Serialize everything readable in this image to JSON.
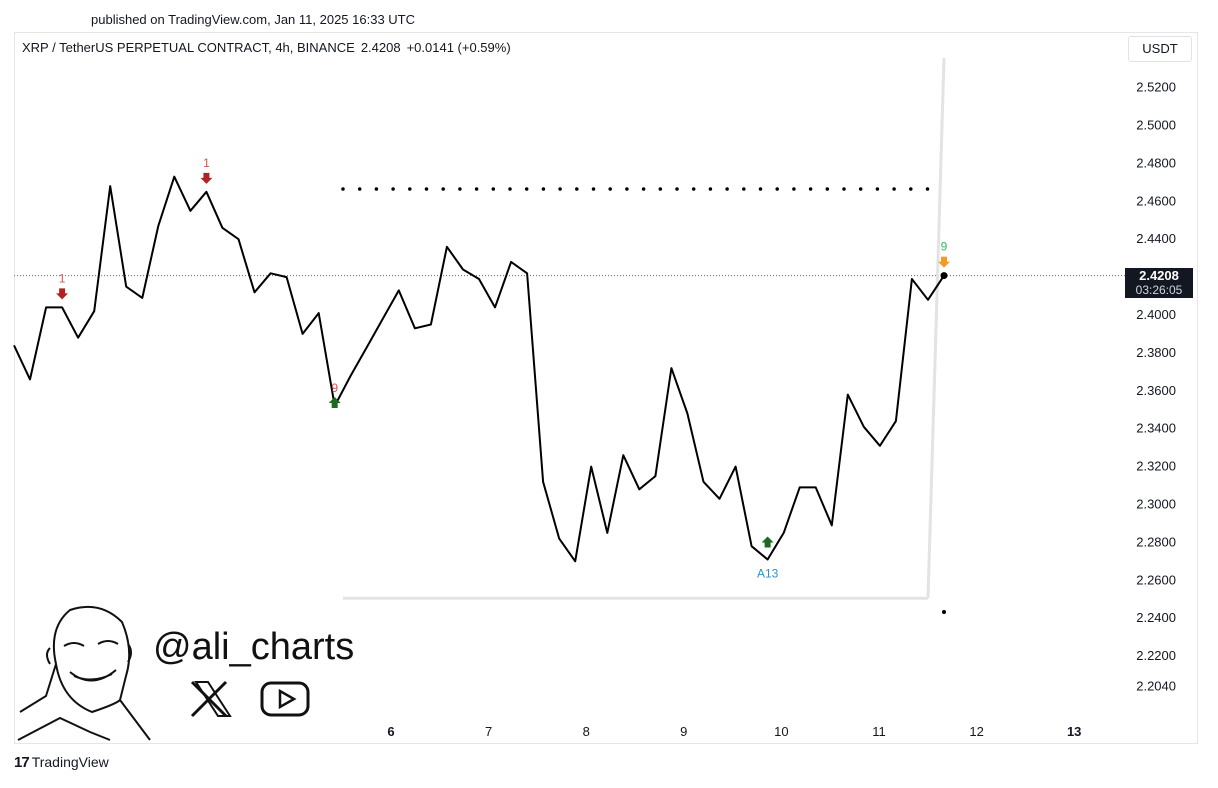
{
  "header": {
    "published": "published on TradingView.com, Jan 11, 2025 16:33 UTC",
    "symbol": "XRP / TetherUS PERPETUAL CONTRACT, 4h, BINANCE",
    "last_price": "2.4208",
    "change": "+0.0141 (+0.59%)",
    "currency_button": "USDT"
  },
  "price_tag": {
    "price": "2.4208",
    "countdown": "03:26:05"
  },
  "watermark": {
    "handle": "@ali_charts",
    "x_icon": "x-logo-icon",
    "youtube_icon": "youtube-icon"
  },
  "footer": {
    "brand": "TradingView",
    "brand_mark": "17"
  },
  "colors": {
    "line": "#000000",
    "sell_arrow": "#b22222",
    "buy_arrow": "#1e6b1e",
    "orange": "#f59a23",
    "green_label": "#2ebd5f",
    "blue_label": "#2f8fd1",
    "grey_guide": "#e3e3e3"
  },
  "chart_data": {
    "type": "line",
    "title": "XRP / TetherUS PERPETUAL CONTRACT, 4h, BINANCE",
    "y_ticks": [
      "2.5200",
      "2.5000",
      "2.4800",
      "2.4600",
      "2.4400",
      "2.4200",
      "2.4000",
      "2.3800",
      "2.3600",
      "2.3400",
      "2.3200",
      "2.3000",
      "2.2800",
      "2.2600",
      "2.2400",
      "2.2200",
      "2.2040"
    ],
    "x_ticks": [
      "6",
      "7",
      "8",
      "9",
      "10",
      "11",
      "12",
      "13"
    ],
    "ylim": [
      2.2,
      2.53
    ],
    "series": [
      {
        "values": [
          2.384,
          2.366,
          2.404,
          2.404,
          2.388,
          2.402,
          2.468,
          2.415,
          2.409,
          2.447,
          2.473,
          2.455,
          2.465,
          2.446,
          2.44,
          2.412,
          2.422,
          2.42,
          2.39,
          2.401,
          2.352,
          2.368,
          2.383,
          2.398,
          2.413,
          2.393,
          2.395,
          2.436,
          2.424,
          2.419,
          2.404,
          2.428,
          2.422,
          2.312,
          2.282,
          2.27,
          2.32,
          2.285,
          2.326,
          2.308,
          2.315,
          2.372,
          2.348,
          2.312,
          2.303,
          2.32,
          2.278,
          2.271,
          2.285,
          2.309,
          2.309,
          2.289,
          2.358,
          2.341,
          2.331,
          2.344,
          2.419,
          2.408,
          2.4208
        ]
      }
    ],
    "resistance_dotted": 2.4665,
    "support_line": 2.2505,
    "current_price_line": 2.4208,
    "markers": [
      {
        "index": 3,
        "label": "1",
        "dir": "down",
        "color": "#b22222",
        "label_color": "#d9534f"
      },
      {
        "index": 12,
        "label": "1",
        "dir": "down",
        "color": "#b22222",
        "label_color": "#d9534f"
      },
      {
        "index": 20,
        "label": "9",
        "dir": "up",
        "color": "#1e6b1e",
        "label_color": "#d9534f"
      },
      {
        "index": 47,
        "label": "A13",
        "dir": "up",
        "color": "#1e6b1e",
        "label_color": "#2f8fd1"
      },
      {
        "index": 58,
        "label": "9",
        "dir": "down",
        "color": "#f59a23",
        "label_color": "#2ebd5f"
      }
    ],
    "grid": false
  }
}
